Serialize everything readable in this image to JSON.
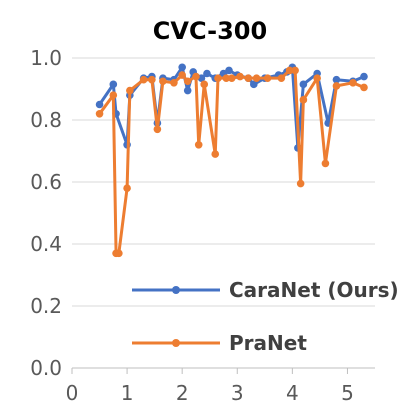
{
  "chart_data": {
    "type": "line",
    "title": "CVC-300",
    "xlabel": "",
    "ylabel": "",
    "xlim": [
      0,
      5.5
    ],
    "ylim": [
      0,
      1
    ],
    "x_ticks": [
      "0",
      "1",
      "2",
      "3",
      "4",
      "5"
    ],
    "y_ticks": [
      "0.0",
      "0.2",
      "0.4",
      "0.6",
      "0.8",
      "1.0"
    ],
    "grid": "horizontal",
    "legend_position": "bottom-right inside",
    "series": [
      {
        "name": "CaraNet (Ours)",
        "color": "#4472C4",
        "points": [
          [
            0.5,
            0.85
          ],
          [
            0.75,
            0.915
          ],
          [
            0.8,
            0.82
          ],
          [
            1.0,
            0.72
          ],
          [
            1.05,
            0.88
          ],
          [
            1.3,
            0.935
          ],
          [
            1.45,
            0.94
          ],
          [
            1.55,
            0.79
          ],
          [
            1.65,
            0.935
          ],
          [
            1.85,
            0.93
          ],
          [
            2.0,
            0.97
          ],
          [
            2.1,
            0.895
          ],
          [
            2.2,
            0.955
          ],
          [
            2.35,
            0.935
          ],
          [
            2.45,
            0.95
          ],
          [
            2.6,
            0.935
          ],
          [
            2.75,
            0.95
          ],
          [
            2.85,
            0.96
          ],
          [
            3.0,
            0.945
          ],
          [
            3.2,
            0.935
          ],
          [
            3.3,
            0.915
          ],
          [
            3.5,
            0.935
          ],
          [
            3.75,
            0.945
          ],
          [
            3.9,
            0.955
          ],
          [
            4.0,
            0.97
          ],
          [
            4.1,
            0.71
          ],
          [
            4.2,
            0.915
          ],
          [
            4.45,
            0.95
          ],
          [
            4.65,
            0.79
          ],
          [
            4.8,
            0.93
          ],
          [
            5.1,
            0.925
          ],
          [
            5.3,
            0.94
          ]
        ]
      },
      {
        "name": "PraNet",
        "color": "#ED7D31",
        "points": [
          [
            0.5,
            0.82
          ],
          [
            0.75,
            0.88
          ],
          [
            0.8,
            0.37
          ],
          [
            0.85,
            0.37
          ],
          [
            1.0,
            0.58
          ],
          [
            1.05,
            0.895
          ],
          [
            1.3,
            0.93
          ],
          [
            1.45,
            0.93
          ],
          [
            1.55,
            0.77
          ],
          [
            1.65,
            0.925
          ],
          [
            1.85,
            0.92
          ],
          [
            2.0,
            0.945
          ],
          [
            2.1,
            0.925
          ],
          [
            2.25,
            0.94
          ],
          [
            2.3,
            0.72
          ],
          [
            2.4,
            0.915
          ],
          [
            2.6,
            0.69
          ],
          [
            2.65,
            0.935
          ],
          [
            2.8,
            0.935
          ],
          [
            2.9,
            0.935
          ],
          [
            3.05,
            0.94
          ],
          [
            3.2,
            0.935
          ],
          [
            3.35,
            0.935
          ],
          [
            3.55,
            0.935
          ],
          [
            3.8,
            0.935
          ],
          [
            3.95,
            0.96
          ],
          [
            4.05,
            0.96
          ],
          [
            4.15,
            0.595
          ],
          [
            4.2,
            0.865
          ],
          [
            4.45,
            0.935
          ],
          [
            4.6,
            0.66
          ],
          [
            4.8,
            0.91
          ],
          [
            5.1,
            0.92
          ],
          [
            5.3,
            0.905
          ]
        ]
      }
    ]
  }
}
